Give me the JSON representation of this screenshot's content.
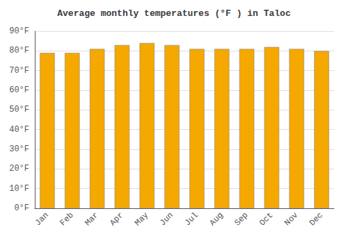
{
  "chart_data": {
    "type": "bar",
    "title": "Average monthly temperatures (°F ) in Taloc",
    "categories": [
      "Jan",
      "Feb",
      "Mar",
      "Apr",
      "May",
      "Jun",
      "Jul",
      "Aug",
      "Sep",
      "Oct",
      "Nov",
      "Dec"
    ],
    "values": [
      79,
      79,
      81,
      83,
      84,
      83,
      81,
      81,
      81,
      82,
      81,
      80
    ],
    "color": "#F5A800",
    "ylim": [
      0,
      90
    ],
    "yticks": [
      {
        "value": 0,
        "label": "0°F"
      },
      {
        "value": 10,
        "label": "10°F"
      },
      {
        "value": 20,
        "label": "20°F"
      },
      {
        "value": 30,
        "label": "30°F"
      },
      {
        "value": 40,
        "label": "40°F"
      },
      {
        "value": 50,
        "label": "50°F"
      },
      {
        "value": 60,
        "label": "60°F"
      },
      {
        "value": 70,
        "label": "70°F"
      },
      {
        "value": 80,
        "label": "80°F"
      },
      {
        "value": 90,
        "label": "90°F"
      }
    ],
    "grid": true
  }
}
